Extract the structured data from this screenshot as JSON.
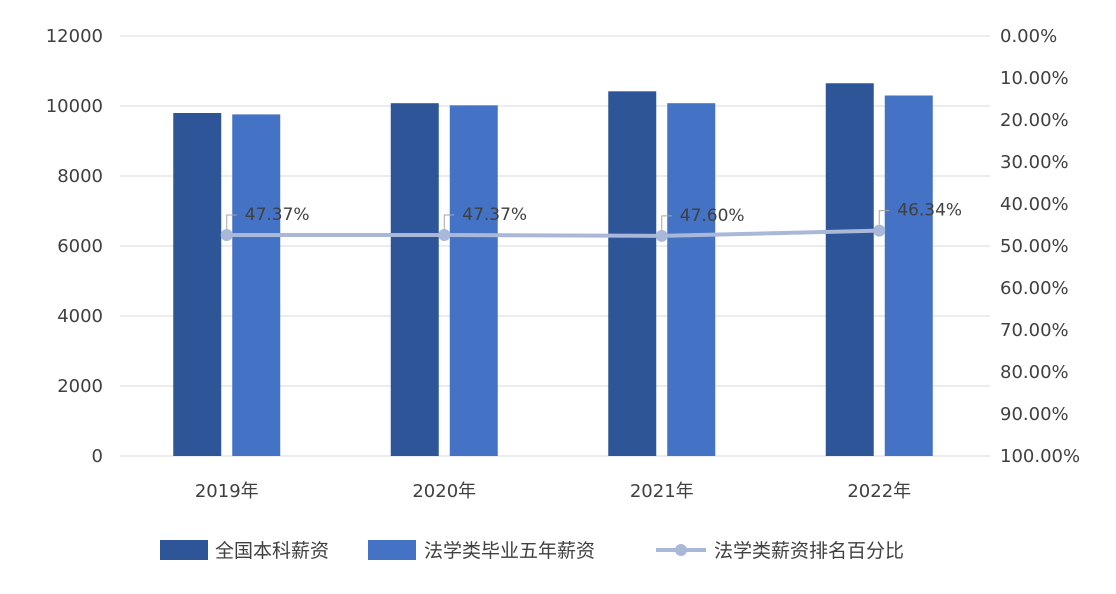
{
  "chart_data": {
    "type": "bar",
    "categories": [
      "2019年",
      "2020年",
      "2021年",
      "2022年"
    ],
    "series": [
      {
        "name": "全国本科薪资",
        "kind": "bar",
        "axis": "left",
        "color": "#2e5597",
        "values": [
          9800,
          10080,
          10420,
          10650
        ]
      },
      {
        "name": "法学类毕业五年薪资",
        "kind": "bar",
        "axis": "left",
        "color": "#4472c4",
        "values": [
          9760,
          10020,
          10080,
          10300
        ]
      },
      {
        "name": "法学类薪资排名百分比",
        "kind": "line",
        "axis": "right",
        "color": "#a9b8d9",
        "values": [
          0.4737,
          0.4737,
          0.476,
          0.4634
        ],
        "labels": [
          "47.37%",
          "47.37%",
          "47.60%",
          "46.34%"
        ]
      }
    ],
    "y_left": {
      "ticks": [
        "0",
        "2000",
        "4000",
        "6000",
        "8000",
        "10000",
        "12000"
      ],
      "ylim": [
        0,
        12000
      ]
    },
    "y_right": {
      "ticks": [
        "0.00%",
        "10.00%",
        "20.00%",
        "30.00%",
        "40.00%",
        "50.00%",
        "60.00%",
        "70.00%",
        "80.00%",
        "90.00%",
        "100.00%"
      ],
      "ylim": [
        0,
        1
      ],
      "reversed": true
    },
    "grid": true,
    "legend_position": "bottom"
  }
}
